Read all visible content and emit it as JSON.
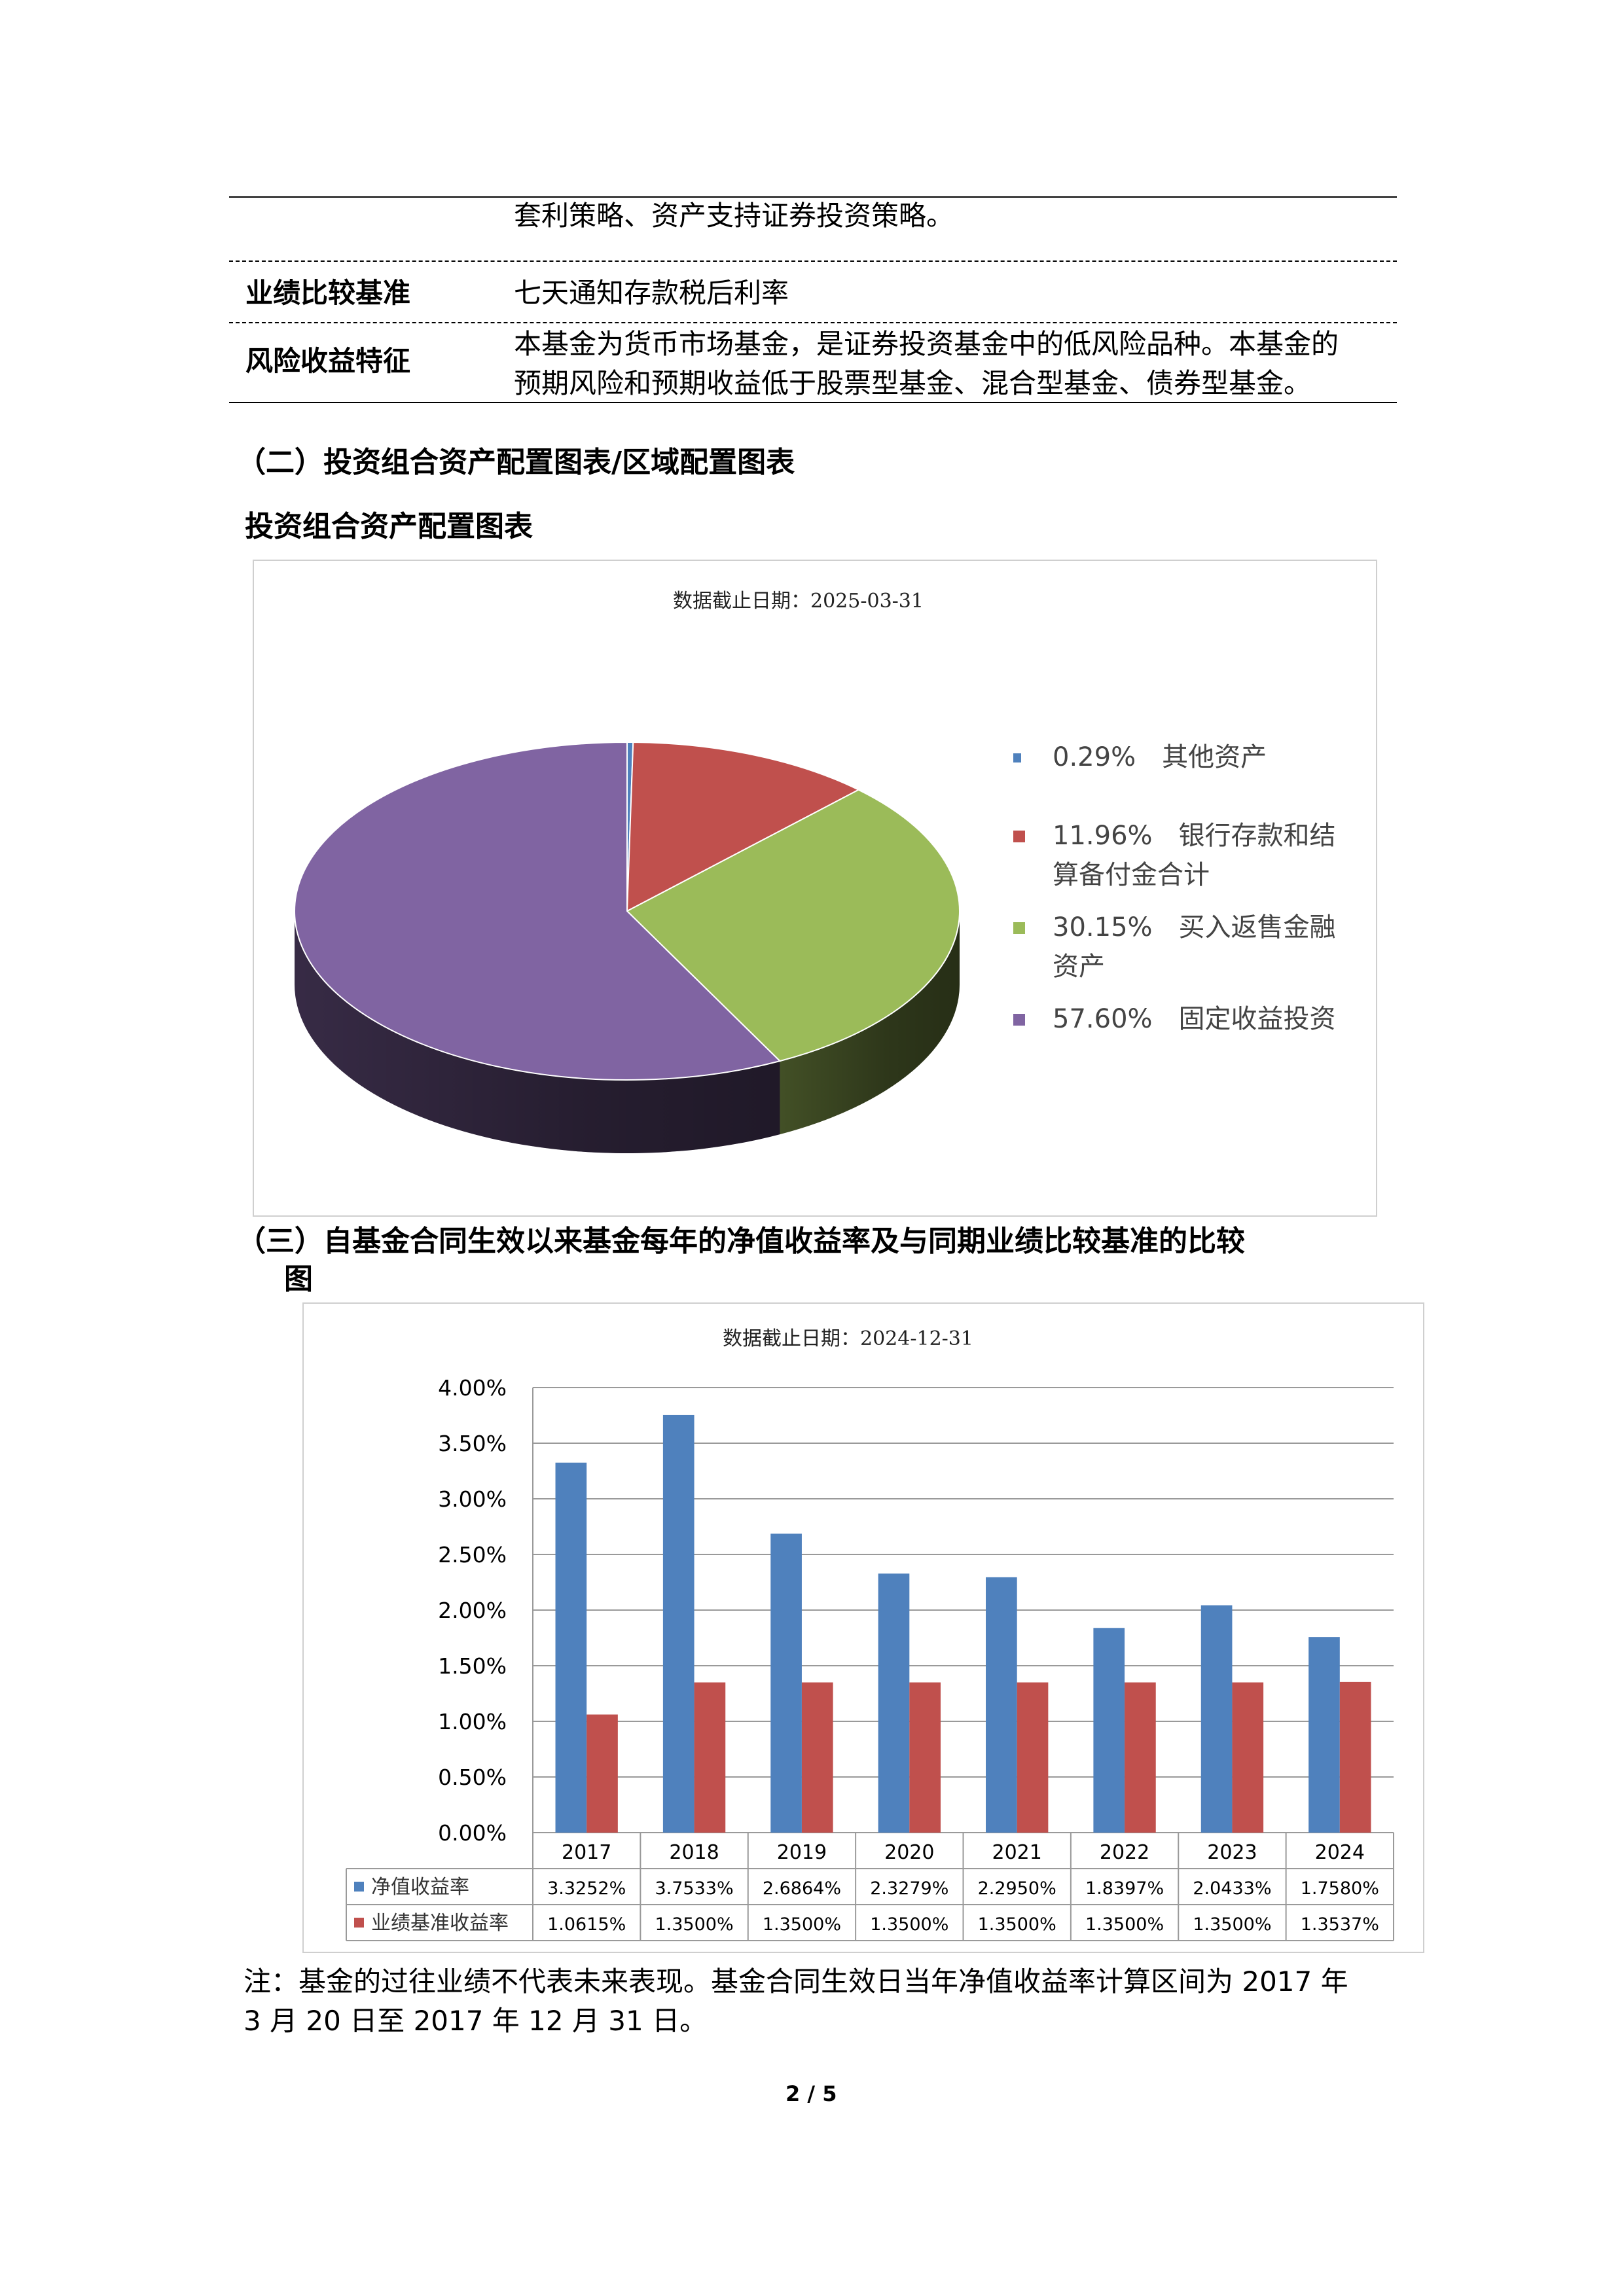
{
  "table": {
    "row0_text": "套利策略、资产支持证券投资策略。",
    "row1_label": "业绩比较基准",
    "row1_text": "七天通知存款税后利率",
    "row2_label": "风险收益特征",
    "row2_text_line1": "本基金为货币市场基金，是证券投资基金中的低风险品种。本基金的",
    "row2_text_line2": "预期风险和预期收益低于股票型基金、混合型基金、债券型基金。"
  },
  "section2": {
    "heading": "（二）投资组合资产配置图表/区域配置图表",
    "subheading": "投资组合资产配置图表"
  },
  "section3": {
    "heading_line1": "（三）自基金合同生效以来基金每年的净值收益率及与同期业绩比较基准的比较",
    "heading_line2": "图"
  },
  "footnote": {
    "line1": "注：基金的过往业绩不代表未来表现。基金合同生效日当年净值收益率计算区间为 2017 年",
    "line2": "3 月 20 日至 2017 年 12 月 31 日。"
  },
  "page_number": "2 / 5",
  "chart_data": [
    {
      "type": "pie",
      "title": "数据截止日期：2025-03-31",
      "legend_position": "right",
      "slices": [
        {
          "label": "其他资产",
          "pct_label": "0.29%",
          "value": 0.29,
          "color": "#4f81bd"
        },
        {
          "label": "银行存款和结算备付金合计",
          "label_line1": "银行存款和结",
          "label_line2": "算备付金合计",
          "pct_label": "11.96%",
          "value": 11.96,
          "color": "#c0504d"
        },
        {
          "label": "买入返售金融资产",
          "label_line1": "买入返售金融",
          "label_line2": "资产",
          "pct_label": "30.15%",
          "value": 30.15,
          "color": "#9bbb59"
        },
        {
          "label": "固定收益投资",
          "pct_label": "57.60%",
          "value": 57.6,
          "color": "#8064a2"
        }
      ]
    },
    {
      "type": "bar",
      "title": "数据截止日期：2024-12-31",
      "categories": [
        "2017",
        "2018",
        "2019",
        "2020",
        "2021",
        "2022",
        "2023",
        "2024"
      ],
      "ylim": [
        0,
        4.0
      ],
      "y_ticks": [
        "4.00%",
        "3.50%",
        "3.00%",
        "2.50%",
        "2.00%",
        "1.50%",
        "1.00%",
        "0.50%",
        "0.00%"
      ],
      "grid": true,
      "data_table": true,
      "series": [
        {
          "name": "净值收益率",
          "color": "#4f81bd",
          "values": [
            3.3252,
            3.7533,
            2.6864,
            2.3279,
            2.295,
            1.8397,
            2.0433,
            1.758
          ],
          "labels": [
            "3.3252%",
            "3.7533%",
            "2.6864%",
            "2.3279%",
            "2.2950%",
            "1.8397%",
            "2.0433%",
            "1.7580%"
          ]
        },
        {
          "name": "业绩基准收益率",
          "color": "#c0504d",
          "values": [
            1.0615,
            1.35,
            1.35,
            1.35,
            1.35,
            1.35,
            1.35,
            1.3537
          ],
          "labels": [
            "1.0615%",
            "1.3500%",
            "1.3500%",
            "1.3500%",
            "1.3500%",
            "1.3500%",
            "1.3500%",
            "1.3537%"
          ]
        }
      ]
    }
  ]
}
